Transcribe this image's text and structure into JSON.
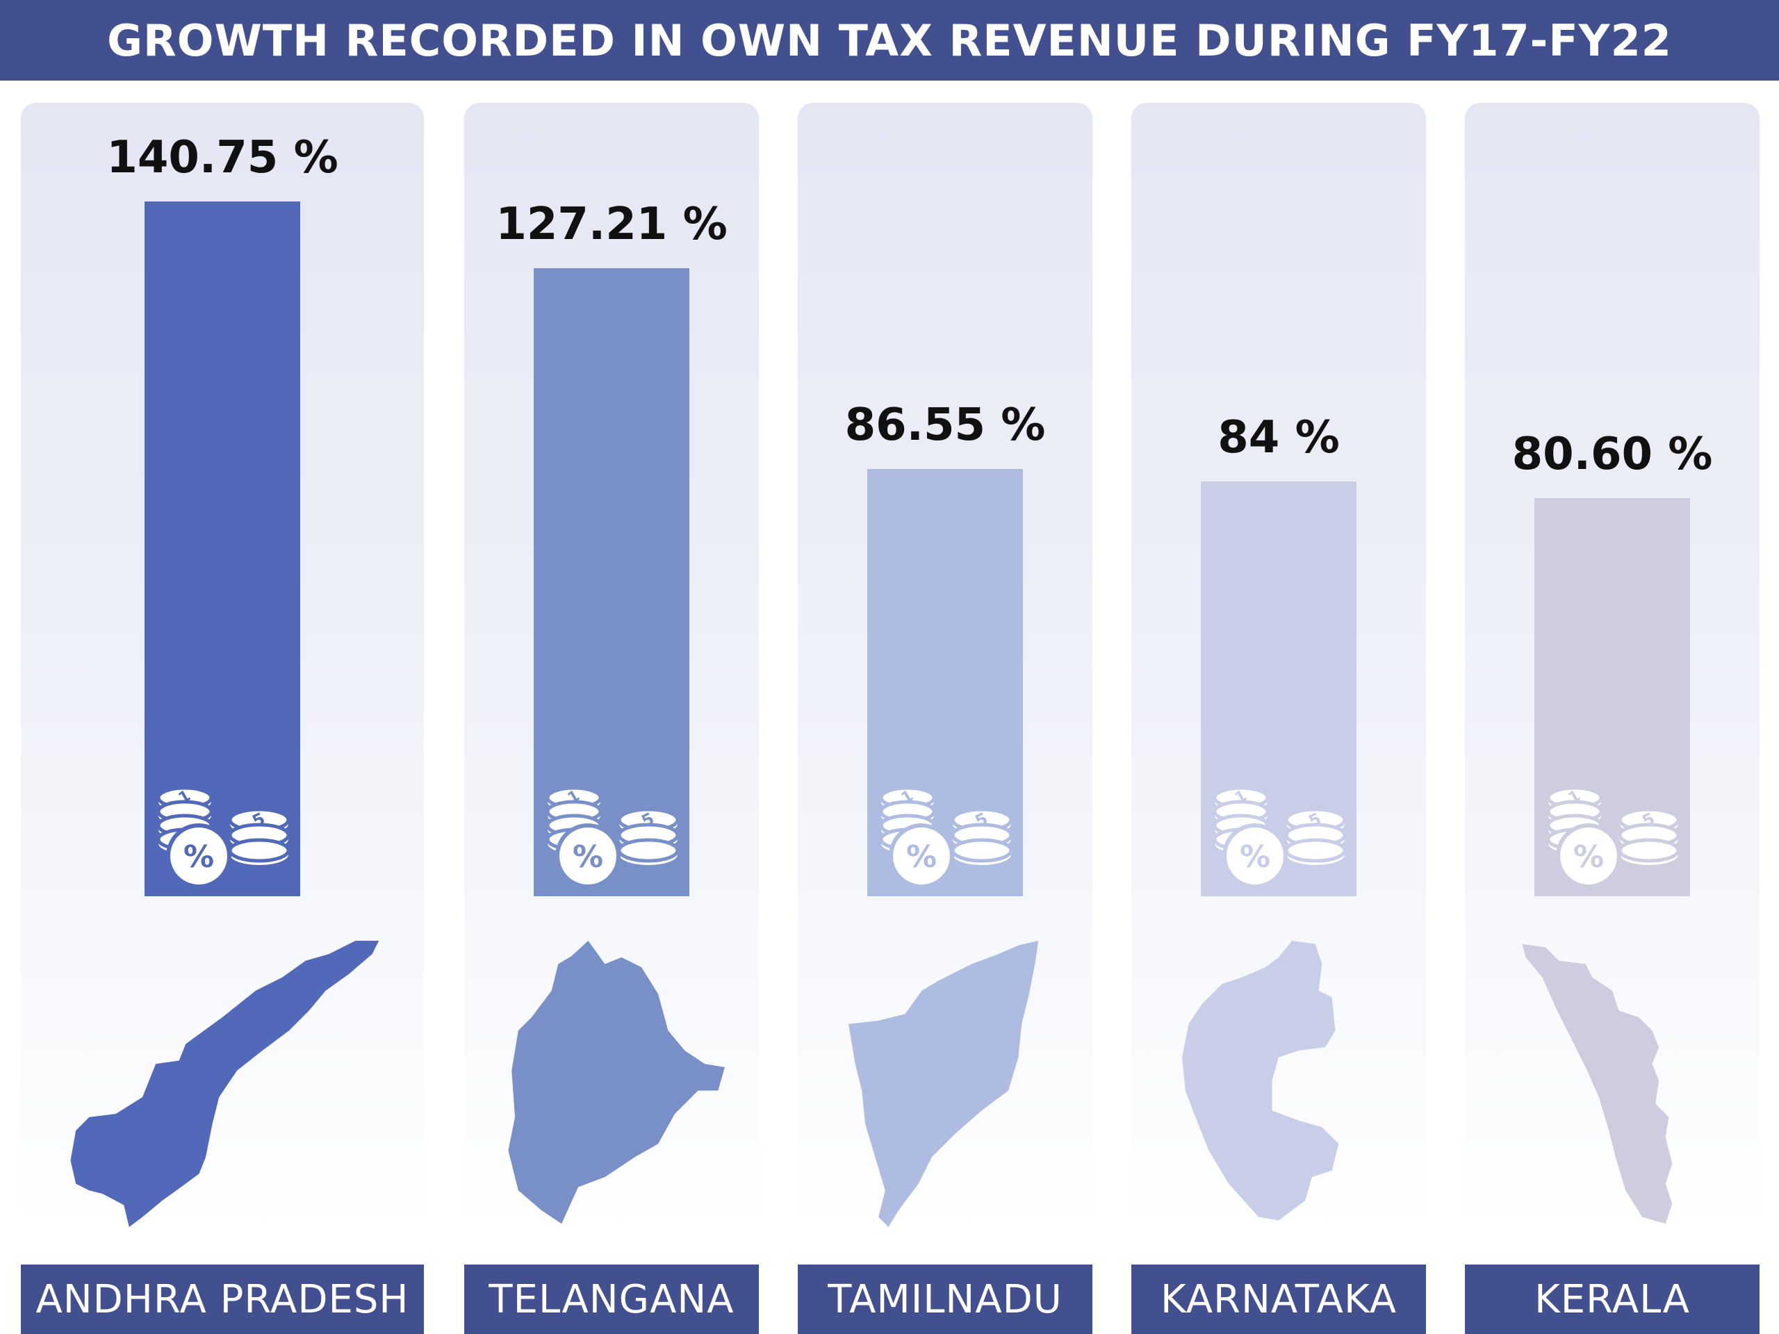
{
  "header": {
    "title": "GROWTH RECORDED IN OWN TAX REVENUE DURING FY17-FY22"
  },
  "chart_data": {
    "type": "bar",
    "title": "GROWTH RECORDED IN OWN TAX REVENUE DURING FY17-FY22",
    "categories": [
      "ANDHRA PRADESH",
      "TELANGANA",
      "TAMILNADU",
      "KARNATAKA",
      "KERALA"
    ],
    "values": [
      140.75,
      127.21,
      86.55,
      84,
      80.6
    ],
    "value_labels": [
      "140.75 %",
      "127.21 %",
      "86.55 %",
      "84 %",
      "80.60 %"
    ],
    "unit": "%",
    "colors": [
      "#5169b8",
      "#798fc7",
      "#afbce2",
      "#c8cde8",
      "#cdcddf"
    ],
    "label_box_color": "#43508f",
    "grid": false,
    "legend": "none",
    "icons": [
      "coins-percent-icon",
      "state-map-icon"
    ]
  }
}
